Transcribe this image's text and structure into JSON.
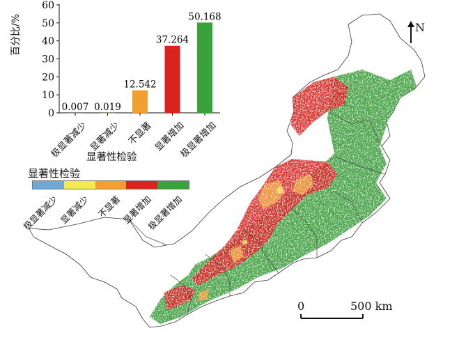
{
  "legend": {
    "title": "显著性检验",
    "classes": [
      {
        "label": "极显著减少",
        "color": "#6fa8d6"
      },
      {
        "label": "显著减少",
        "color": "#f2ea4d"
      },
      {
        "label": "不显著",
        "color": "#f0a030"
      },
      {
        "label": "显著增加",
        "color": "#d9231f"
      },
      {
        "label": "极显著增加",
        "color": "#3aa23a"
      }
    ]
  },
  "north_arrow": {
    "label": "N"
  },
  "scale_bar": {
    "start_label": "0",
    "end_label": "500 km"
  },
  "chart_data": {
    "type": "bar",
    "categories": [
      "极显著减少",
      "显著减少",
      "不显著",
      "显著增加",
      "极显著增加"
    ],
    "values": [
      0.007,
      0.019,
      12.542,
      37.264,
      50.168
    ],
    "value_labels": [
      "0.007",
      "0.019",
      "12.542",
      "37.264",
      "50.168"
    ],
    "colors": [
      "#6fa8d6",
      "#f2ea4d",
      "#f0a030",
      "#d9231f",
      "#3aa23a"
    ],
    "xlabel": "显著性检验",
    "ylabel": "百分比/%",
    "ylim": [
      0,
      60
    ],
    "yticks": [
      0,
      10,
      20,
      30,
      40,
      50,
      60
    ]
  }
}
